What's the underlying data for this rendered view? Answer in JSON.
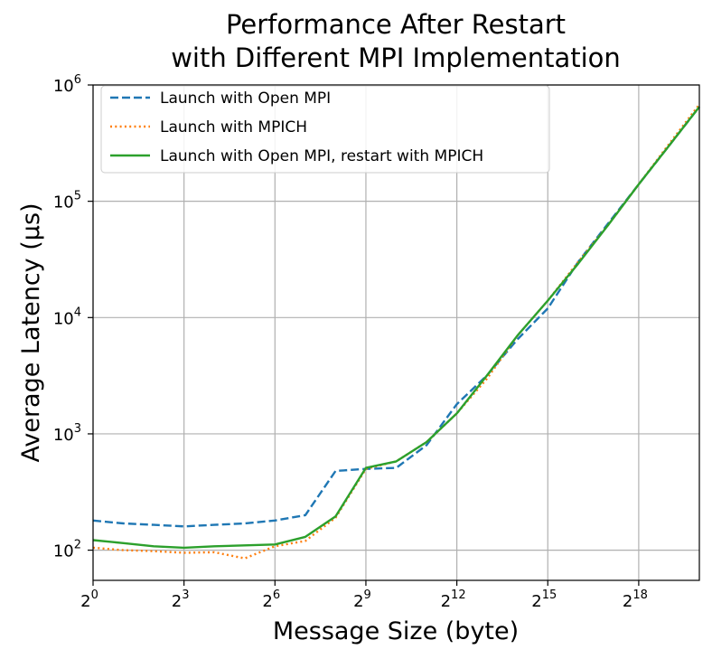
{
  "chart_data": {
    "type": "line",
    "title": [
      "Performance After Restart",
      "with Different MPI Implementation"
    ],
    "xlabel": "Message Size (byte)",
    "ylabel": "Average Latency (µs)",
    "x_scale": "log2",
    "y_scale": "log10",
    "xlim": [
      1,
      1048576
    ],
    "ylim": [
      55,
      1000000
    ],
    "grid": true,
    "legend_position": "top-left",
    "x_ticks": [
      {
        "base": "2",
        "exp": "0"
      },
      {
        "base": "2",
        "exp": "3"
      },
      {
        "base": "2",
        "exp": "6"
      },
      {
        "base": "2",
        "exp": "9"
      },
      {
        "base": "2",
        "exp": "12"
      },
      {
        "base": "2",
        "exp": "15"
      },
      {
        "base": "2",
        "exp": "18"
      }
    ],
    "y_ticks": [
      {
        "base": "10",
        "exp": "2"
      },
      {
        "base": "10",
        "exp": "3"
      },
      {
        "base": "10",
        "exp": "4"
      },
      {
        "base": "10",
        "exp": "5"
      },
      {
        "base": "10",
        "exp": "6"
      }
    ],
    "x": [
      1,
      2,
      4,
      8,
      16,
      32,
      64,
      128,
      256,
      512,
      1024,
      2048,
      4096,
      8192,
      16384,
      32768,
      65536,
      131072,
      262144,
      524288,
      1048576
    ],
    "series": [
      {
        "name": "Launch with Open MPI",
        "color": "#1f77b4",
        "style": "dashed",
        "values": [
          180,
          170,
          165,
          160,
          165,
          170,
          180,
          200,
          480,
          500,
          510,
          800,
          1800,
          3200,
          6500,
          12000,
          30000,
          65000,
          140000,
          300000,
          650000
        ]
      },
      {
        "name": "Launch with MPICH",
        "color": "#ff7f0e",
        "style": "dotted",
        "values": [
          105,
          100,
          98,
          95,
          96,
          85,
          108,
          120,
          190,
          500,
          580,
          850,
          1500,
          3000,
          7000,
          14000,
          30000,
          63000,
          140000,
          310000,
          680000
        ]
      },
      {
        "name": "Launch with Open MPI, restart with MPICH",
        "color": "#2ca02c",
        "style": "solid",
        "values": [
          122,
          115,
          108,
          105,
          108,
          110,
          112,
          130,
          195,
          510,
          580,
          850,
          1500,
          3200,
          7000,
          14000,
          29000,
          63000,
          140000,
          300000,
          650000
        ]
      }
    ]
  }
}
